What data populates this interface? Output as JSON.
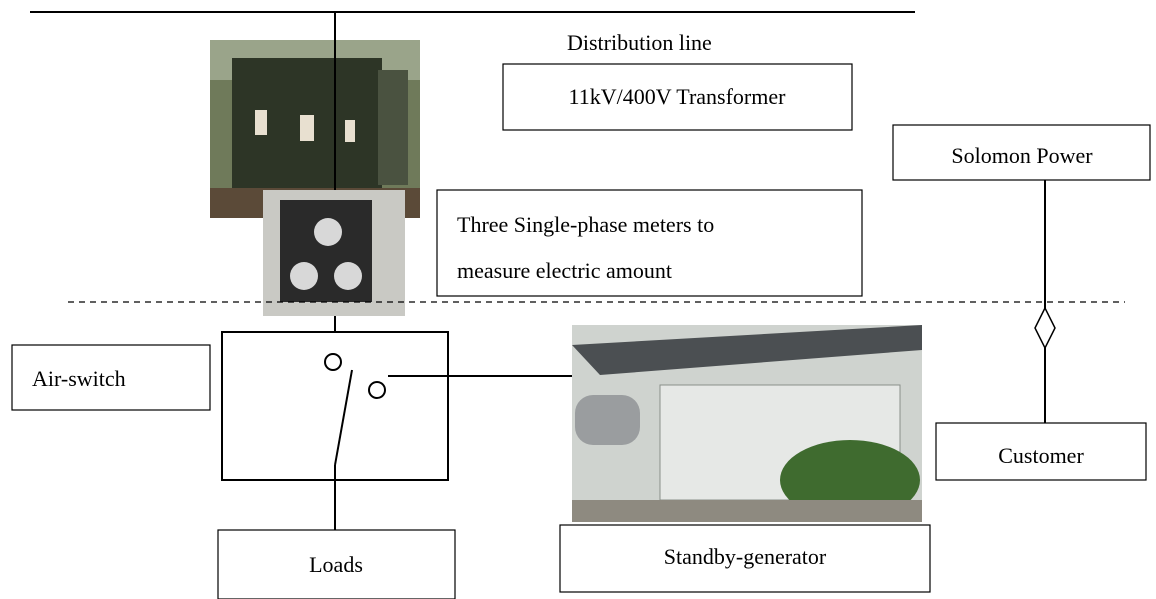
{
  "title": "Distribution line",
  "nodes": [
    {
      "label": "11kV/400V Transformer"
    },
    {
      "label": "Solomon Power"
    },
    {
      "lines": [
        "Three Single-phase meters to",
        "measure electric amount"
      ]
    },
    {
      "label": "Air-switch"
    },
    {
      "label": "Customer"
    },
    {
      "label": "Loads"
    },
    {
      "label": "Standby-generator"
    }
  ]
}
